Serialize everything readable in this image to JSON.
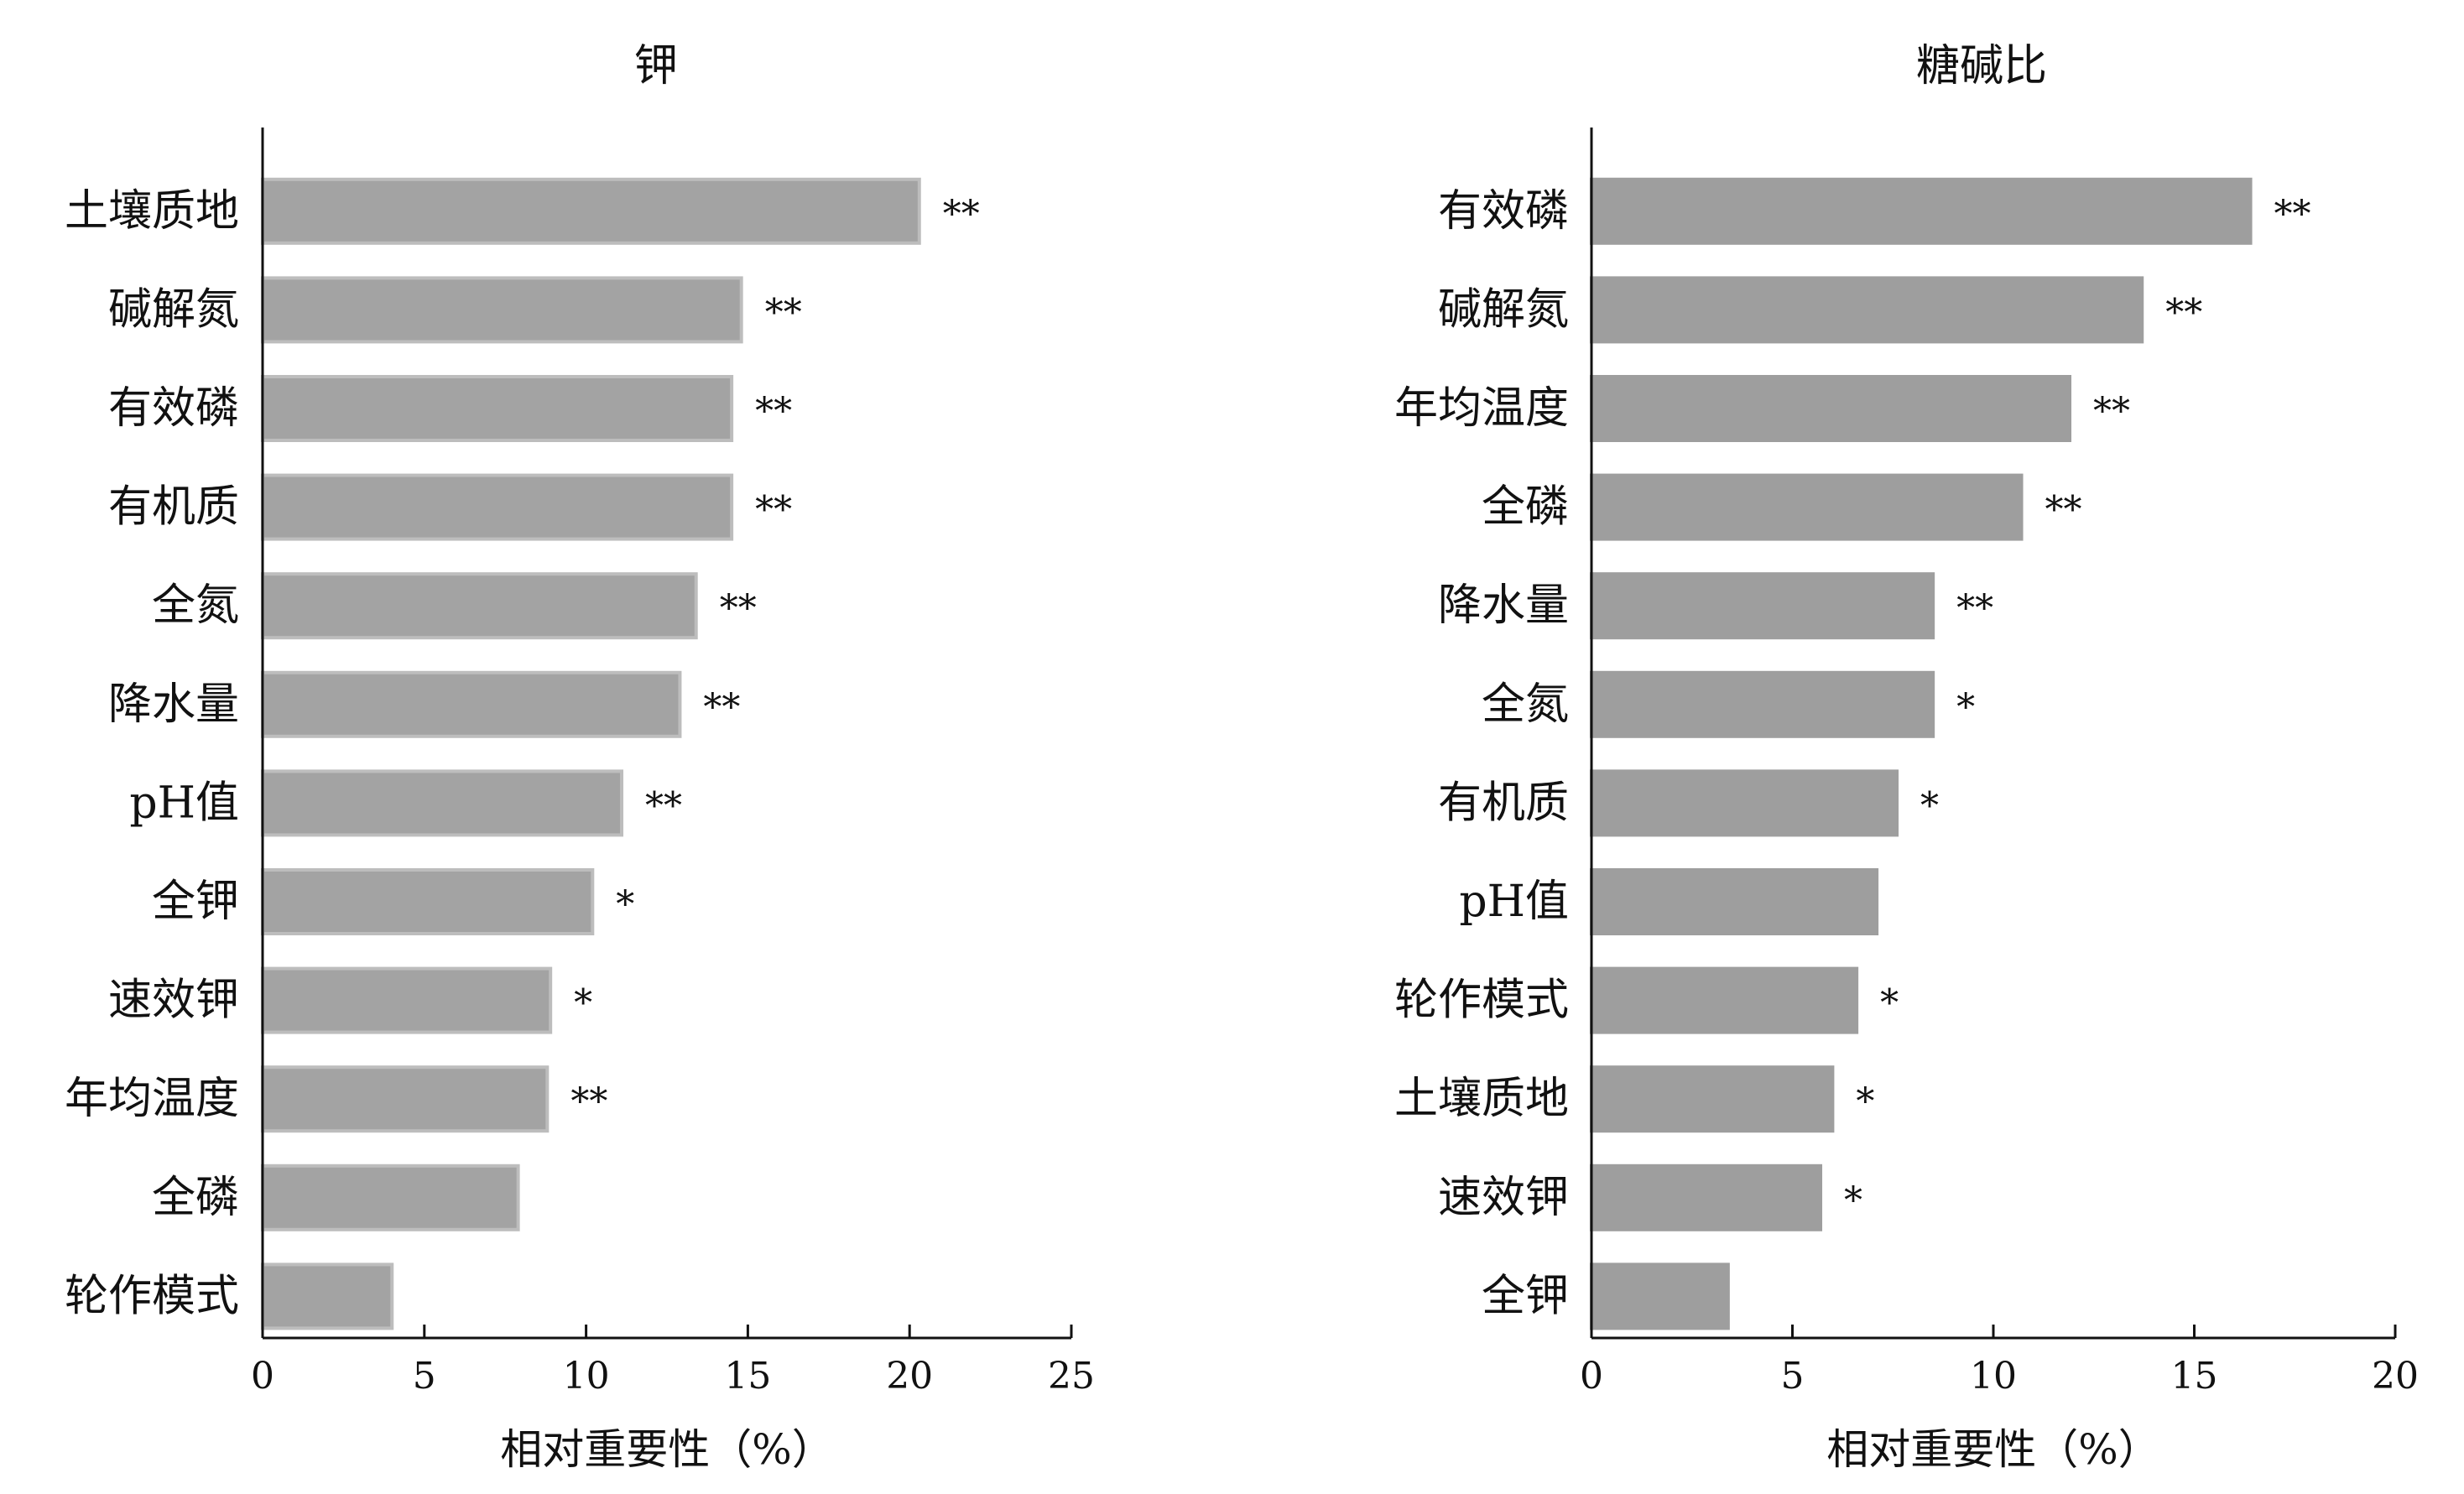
{
  "chart_data": [
    {
      "type": "bar",
      "orientation": "horizontal",
      "title": "钾",
      "xlabel": "相对重要性（%）",
      "xlim": [
        0,
        25
      ],
      "xticks": [
        0,
        5,
        10,
        15,
        20,
        25
      ],
      "grid": false,
      "bar_color": "#a3a3a3",
      "bar_edge_color": "#bdbdbd",
      "categories": [
        "土壤质地",
        "碱解氮",
        "有效磷",
        "有机质",
        "全氮",
        "降水量",
        "pH值",
        "全钾",
        "速效钾",
        "年均温度",
        "全磷",
        "轮作模式"
      ],
      "values": [
        20.3,
        14.8,
        14.5,
        14.5,
        13.4,
        12.9,
        11.1,
        10.2,
        8.9,
        8.8,
        7.9,
        4.0
      ],
      "significance": [
        "**",
        "**",
        "**",
        "**",
        "**",
        "**",
        "**",
        "*",
        "*",
        "**",
        "",
        ""
      ]
    },
    {
      "type": "bar",
      "orientation": "horizontal",
      "title": "糖碱比",
      "xlabel": "相对重要性（%）",
      "xlim": [
        0,
        20
      ],
      "xticks": [
        0,
        5,
        10,
        15,
        20
      ],
      "grid": false,
      "bar_color": "#9e9e9e",
      "bar_edge_color": "#9e9e9e",
      "categories": [
        "有效磷",
        "碱解氮",
        "年均温度",
        "全磷",
        "降水量",
        "全氮",
        "有机质",
        "pH值",
        "轮作模式",
        "土壤质地",
        "速效钾",
        "全钾"
      ],
      "values": [
        16.4,
        13.7,
        11.9,
        10.7,
        8.5,
        8.5,
        7.6,
        7.1,
        6.6,
        6.0,
        5.7,
        3.4
      ],
      "significance": [
        "**",
        "**",
        "**",
        "**",
        "**",
        "*",
        "*",
        "",
        "*",
        "*",
        "*",
        ""
      ]
    }
  ]
}
